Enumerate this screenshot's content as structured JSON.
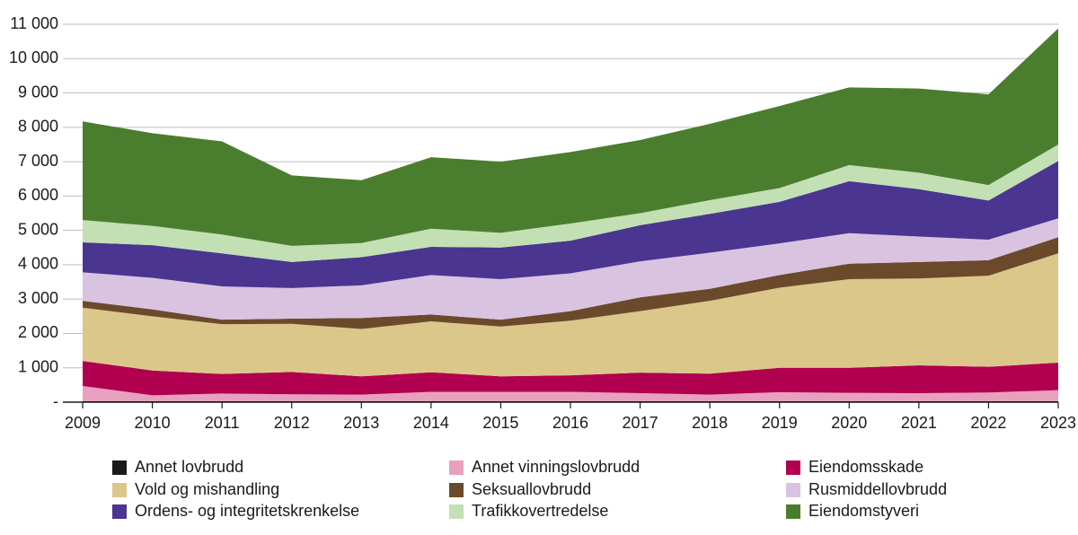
{
  "chart_data": {
    "type": "stacked-area",
    "categories": [
      "2009",
      "2010",
      "2011",
      "2012",
      "2013",
      "2014",
      "2015",
      "2016",
      "2017",
      "2018",
      "2019",
      "2020",
      "2021",
      "2022",
      "2023"
    ],
    "series": [
      {
        "name": "Annet lovbrudd",
        "color": "#1a1a1a",
        "values": [
          30,
          30,
          30,
          30,
          30,
          30,
          30,
          30,
          30,
          30,
          30,
          30,
          30,
          30,
          30
        ]
      },
      {
        "name": "Annet vinningslovbrudd",
        "color": "#e8a0bf",
        "values": [
          440,
          170,
          220,
          200,
          190,
          270,
          270,
          270,
          230,
          190,
          260,
          240,
          230,
          250,
          320
        ]
      },
      {
        "name": "Eiendomsskade",
        "color": "#b0004f",
        "values": [
          730,
          720,
          570,
          650,
          530,
          570,
          450,
          480,
          600,
          610,
          710,
          730,
          810,
          750,
          800
        ]
      },
      {
        "name": "Vold og mishandling",
        "color": "#dcc78a",
        "values": [
          1550,
          1580,
          1450,
          1400,
          1380,
          1480,
          1450,
          1590,
          1790,
          2120,
          2330,
          2580,
          2530,
          2650,
          3180
        ]
      },
      {
        "name": "Seksuallovbrudd",
        "color": "#6b4a2c",
        "values": [
          200,
          200,
          130,
          150,
          320,
          200,
          200,
          280,
          400,
          350,
          370,
          450,
          480,
          450,
          470
        ]
      },
      {
        "name": "Rusmiddellovbrudd",
        "color": "#d9c3e0",
        "values": [
          830,
          920,
          970,
          890,
          950,
          1150,
          1180,
          1100,
          1050,
          1050,
          920,
          890,
          740,
          600,
          550
        ]
      },
      {
        "name": "Ordens- og integritetskrenkelse",
        "color": "#4a3590",
        "values": [
          870,
          950,
          960,
          760,
          820,
          820,
          920,
          950,
          1050,
          1130,
          1210,
          1510,
          1380,
          1140,
          1670
        ]
      },
      {
        "name": "Trafikkovertredelse",
        "color": "#c2e0b4",
        "values": [
          650,
          560,
          550,
          470,
          410,
          530,
          430,
          500,
          350,
          400,
          400,
          470,
          480,
          450,
          480
        ]
      },
      {
        "name": "Eiendomstyveri",
        "color": "#4a7e2e",
        "values": [
          2870,
          2700,
          2710,
          2050,
          1830,
          2080,
          2070,
          2080,
          2130,
          2220,
          2390,
          2260,
          2450,
          2640,
          3380
        ]
      }
    ],
    "ylim": [
      0,
      11000
    ],
    "yticks": [
      {
        "value": 0,
        "label": "-"
      },
      {
        "value": 1000,
        "label": "1 000"
      },
      {
        "value": 2000,
        "label": "2 000"
      },
      {
        "value": 3000,
        "label": "3 000"
      },
      {
        "value": 4000,
        "label": "4 000"
      },
      {
        "value": 5000,
        "label": "5 000"
      },
      {
        "value": 6000,
        "label": "6 000"
      },
      {
        "value": 7000,
        "label": "7 000"
      },
      {
        "value": 8000,
        "label": "8 000"
      },
      {
        "value": 9000,
        "label": "9 000"
      },
      {
        "value": 10000,
        "label": "10 000"
      },
      {
        "value": 11000,
        "label": "11 000"
      }
    ],
    "grid": true
  }
}
